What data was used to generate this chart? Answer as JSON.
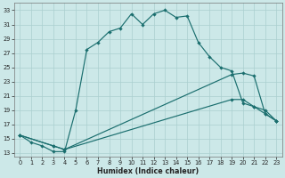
{
  "xlabel": "Humidex (Indice chaleur)",
  "bg_color": "#cce8e8",
  "grid_color": "#aacfcf",
  "line_color": "#1a6e6e",
  "xlim": [
    -0.5,
    23.5
  ],
  "ylim": [
    12.5,
    34.0
  ],
  "xticks": [
    0,
    1,
    2,
    3,
    4,
    5,
    6,
    7,
    8,
    9,
    10,
    11,
    12,
    13,
    14,
    15,
    16,
    17,
    18,
    19,
    20,
    21,
    22,
    23
  ],
  "yticks": [
    13,
    15,
    17,
    19,
    21,
    23,
    25,
    27,
    29,
    31,
    33
  ],
  "curve1_x": [
    0,
    1,
    2,
    3,
    4,
    5,
    6,
    7,
    8,
    9,
    10,
    11,
    12,
    13,
    14,
    15,
    16,
    17,
    18,
    19,
    20,
    21,
    22,
    23
  ],
  "curve1_y": [
    15.5,
    14.5,
    14.0,
    13.2,
    13.2,
    19.0,
    27.5,
    28.5,
    30.0,
    30.5,
    32.5,
    31.0,
    32.5,
    33.0,
    32.0,
    32.2,
    28.5,
    26.5,
    25.0,
    24.5,
    20.0,
    19.5,
    19.0,
    17.5
  ],
  "curve2_x": [
    0,
    3,
    4,
    19,
    20,
    21,
    22,
    23
  ],
  "curve2_y": [
    15.5,
    14.0,
    13.5,
    20.5,
    20.5,
    19.5,
    18.5,
    17.5
  ],
  "curve3_x": [
    0,
    3,
    4,
    19,
    20,
    21,
    22,
    23
  ],
  "curve3_y": [
    15.5,
    14.0,
    13.5,
    24.0,
    24.2,
    23.8,
    18.5,
    17.5
  ]
}
